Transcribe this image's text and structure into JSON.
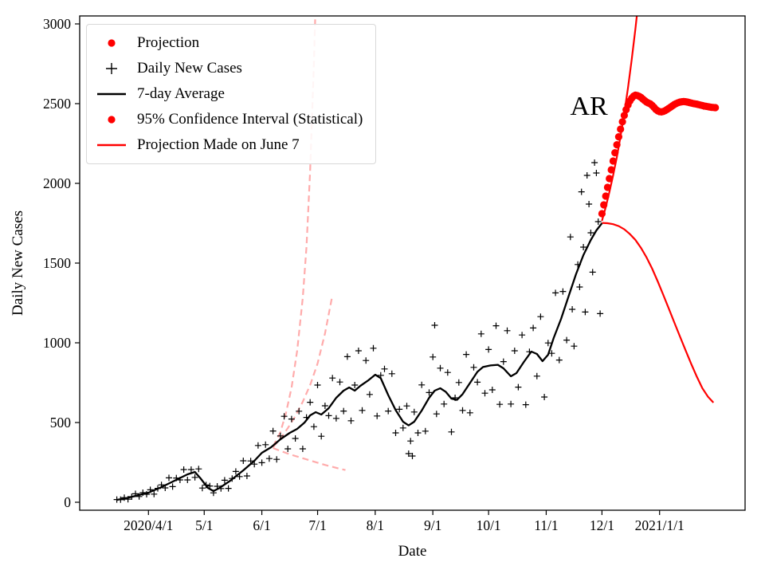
{
  "chart_data": {
    "type": "scatter",
    "title": "",
    "xlabel": "Date",
    "ylabel": "Daily New Cases",
    "x_unit": "days since 2020/3/15",
    "xlim": [
      -20,
      338
    ],
    "ylim": [
      -50,
      3050
    ],
    "grid": false,
    "legend_position": "upper-left",
    "x_ticks": [
      {
        "day": 17,
        "label": "2020/4/1"
      },
      {
        "day": 47,
        "label": "5/1"
      },
      {
        "day": 78,
        "label": "6/1"
      },
      {
        "day": 108,
        "label": "7/1"
      },
      {
        "day": 139,
        "label": "8/1"
      },
      {
        "day": 170,
        "label": "9/1"
      },
      {
        "day": 200,
        "label": "10/1"
      },
      {
        "day": 231,
        "label": "11/1"
      },
      {
        "day": 261,
        "label": "12/1"
      },
      {
        "day": 292,
        "label": "2021/1/1"
      }
    ],
    "y_ticks": [
      {
        "value": 0,
        "label": "0"
      },
      {
        "value": 500,
        "label": "500"
      },
      {
        "value": 1000,
        "label": "1000"
      },
      {
        "value": 1500,
        "label": "1500"
      },
      {
        "value": 2000,
        "label": "2000"
      },
      {
        "value": 2500,
        "label": "2500"
      },
      {
        "value": 3000,
        "label": "3000"
      }
    ],
    "legend": [
      {
        "label": "Projection",
        "marker": "red-dot"
      },
      {
        "label": "Daily New Cases",
        "marker": "black-plus"
      },
      {
        "label": "7-day Average",
        "marker": "black-line"
      },
      {
        "label": "95% Confidence Interval (Statistical)",
        "marker": "red-dot"
      },
      {
        "label": "Projection Made on June 7",
        "marker": "red-line"
      }
    ],
    "annotation": {
      "text": "AR",
      "day": 254,
      "value": 2430
    },
    "colors": {
      "red": "#ff0000",
      "pink": "#ffabab",
      "black": "#000000",
      "legend_border": "#d8d8d8"
    },
    "series": {
      "daily_new_cases": {
        "name": "Daily New Cases",
        "style": "plus-marker",
        "points": [
          [
            0,
            17
          ],
          [
            2,
            16
          ],
          [
            4,
            29
          ],
          [
            6,
            19
          ],
          [
            8,
            35
          ],
          [
            10,
            53
          ],
          [
            12,
            36
          ],
          [
            14,
            60
          ],
          [
            16,
            50
          ],
          [
            18,
            78
          ],
          [
            20,
            51
          ],
          [
            22,
            87
          ],
          [
            24,
            109
          ],
          [
            26,
            90
          ],
          [
            28,
            153
          ],
          [
            30,
            98
          ],
          [
            32,
            152
          ],
          [
            34,
            140
          ],
          [
            36,
            205
          ],
          [
            38,
            140
          ],
          [
            40,
            205
          ],
          [
            42,
            156
          ],
          [
            44,
            209
          ],
          [
            46,
            89
          ],
          [
            48,
            108
          ],
          [
            50,
            102
          ],
          [
            52,
            59
          ],
          [
            54,
            100
          ],
          [
            56,
            86
          ],
          [
            58,
            138
          ],
          [
            60,
            87
          ],
          [
            62,
            149
          ],
          [
            64,
            193
          ],
          [
            66,
            161
          ],
          [
            68,
            260
          ],
          [
            70,
            165
          ],
          [
            72,
            259
          ],
          [
            74,
            239
          ],
          [
            76,
            356
          ],
          [
            78,
            248
          ],
          [
            80,
            361
          ],
          [
            82,
            274
          ],
          [
            84,
            447
          ],
          [
            86,
            269
          ],
          [
            88,
            416
          ],
          [
            90,
            539
          ],
          [
            92,
            335
          ],
          [
            94,
            522
          ],
          [
            96,
            400
          ],
          [
            98,
            571
          ],
          [
            100,
            335
          ],
          [
            102,
            532
          ],
          [
            104,
            627
          ],
          [
            106,
            474
          ],
          [
            108,
            735
          ],
          [
            110,
            414
          ],
          [
            112,
            605
          ],
          [
            114,
            543
          ],
          [
            116,
            779
          ],
          [
            118,
            526
          ],
          [
            120,
            754
          ],
          [
            122,
            572
          ],
          [
            124,
            913
          ],
          [
            126,
            511
          ],
          [
            128,
            735
          ],
          [
            130,
            950
          ],
          [
            132,
            576
          ],
          [
            134,
            889
          ],
          [
            136,
            676
          ],
          [
            138,
            966
          ],
          [
            140,
            541
          ],
          [
            142,
            796
          ],
          [
            144,
            836
          ],
          [
            146,
            572
          ],
          [
            148,
            806
          ],
          [
            150,
            435
          ],
          [
            152,
            583
          ],
          [
            154,
            466
          ],
          [
            156,
            604
          ],
          [
            158,
            384
          ],
          [
            160,
            566
          ],
          [
            162,
            435
          ],
          [
            164,
            736
          ],
          [
            166,
            446
          ],
          [
            168,
            688
          ],
          [
            170,
            911
          ],
          [
            172,
            554
          ],
          [
            174,
            841
          ],
          [
            176,
            616
          ],
          [
            178,
            814
          ],
          [
            180,
            441
          ],
          [
            182,
            655
          ],
          [
            184,
            751
          ],
          [
            186,
            576
          ],
          [
            188,
            927
          ],
          [
            190,
            561
          ],
          [
            192,
            846
          ],
          [
            194,
            753
          ],
          [
            196,
            1056
          ],
          [
            198,
            684
          ],
          [
            200,
            958
          ],
          [
            202,
            705
          ],
          [
            204,
            1107
          ],
          [
            206,
            614
          ],
          [
            208,
            882
          ],
          [
            210,
            1076
          ],
          [
            212,
            616
          ],
          [
            214,
            950
          ],
          [
            216,
            722
          ],
          [
            218,
            1049
          ],
          [
            220,
            612
          ],
          [
            222,
            944
          ],
          [
            224,
            1093
          ],
          [
            226,
            791
          ],
          [
            228,
            1164
          ],
          [
            230,
            660
          ],
          [
            232,
            999
          ],
          [
            234,
            934
          ],
          [
            236,
            1313
          ],
          [
            238,
            892
          ],
          [
            240,
            1322
          ],
          [
            242,
            1017
          ],
          [
            244,
            1664
          ],
          [
            246,
            979
          ],
          [
            248,
            1491
          ],
          [
            250,
            1947
          ],
          [
            252,
            1193
          ],
          [
            254,
            1870
          ],
          [
            256,
            1443
          ],
          [
            258,
            2065
          ],
          [
            260,
            1183
          ],
          [
            157,
            305
          ],
          [
            159,
            290
          ],
          [
            171,
            1110
          ],
          [
            245,
            1210
          ],
          [
            249,
            1350
          ],
          [
            251,
            1600
          ],
          [
            253,
            2050
          ],
          [
            255,
            1690
          ],
          [
            257,
            2130
          ],
          [
            259,
            1760
          ]
        ]
      },
      "seven_day_average": {
        "name": "7-day Average",
        "style": "solid-line",
        "points": [
          [
            0,
            15
          ],
          [
            5,
            25
          ],
          [
            10,
            40
          ],
          [
            17,
            60
          ],
          [
            24,
            95
          ],
          [
            31,
            135
          ],
          [
            38,
            175
          ],
          [
            42,
            190
          ],
          [
            45,
            150
          ],
          [
            49,
            90
          ],
          [
            52,
            70
          ],
          [
            55,
            88
          ],
          [
            61,
            135
          ],
          [
            68,
            200
          ],
          [
            74,
            260
          ],
          [
            78,
            310
          ],
          [
            83,
            345
          ],
          [
            88,
            395
          ],
          [
            93,
            435
          ],
          [
            97,
            460
          ],
          [
            101,
            500
          ],
          [
            104,
            545
          ],
          [
            107,
            565
          ],
          [
            110,
            550
          ],
          [
            114,
            590
          ],
          [
            118,
            655
          ],
          [
            122,
            700
          ],
          [
            125,
            720
          ],
          [
            128,
            700
          ],
          [
            131,
            730
          ],
          [
            135,
            762
          ],
          [
            139,
            800
          ],
          [
            142,
            778
          ],
          [
            146,
            672
          ],
          [
            150,
            578
          ],
          [
            154,
            505
          ],
          [
            157,
            482
          ],
          [
            160,
            505
          ],
          [
            164,
            575
          ],
          [
            168,
            655
          ],
          [
            171,
            700
          ],
          [
            174,
            715
          ],
          [
            177,
            692
          ],
          [
            180,
            650
          ],
          [
            183,
            642
          ],
          [
            186,
            678
          ],
          [
            190,
            748
          ],
          [
            194,
            818
          ],
          [
            197,
            848
          ],
          [
            201,
            858
          ],
          [
            205,
            862
          ],
          [
            208,
            840
          ],
          [
            212,
            790
          ],
          [
            215,
            810
          ],
          [
            219,
            880
          ],
          [
            223,
            945
          ],
          [
            226,
            930
          ],
          [
            229,
            885
          ],
          [
            232,
            925
          ],
          [
            235,
            1030
          ],
          [
            239,
            1150
          ],
          [
            243,
            1290
          ],
          [
            247,
            1430
          ],
          [
            251,
            1550
          ],
          [
            255,
            1645
          ],
          [
            258,
            1705
          ],
          [
            261,
            1750
          ]
        ]
      },
      "projection": {
        "name": "Projection",
        "style": "red-dots",
        "start_day": 261,
        "values": [
          1810,
          1865,
          1920,
          1975,
          2030,
          2085,
          2140,
          2192,
          2242,
          2292,
          2340,
          2386,
          2426,
          2462,
          2492,
          2516,
          2534,
          2547,
          2553,
          2551,
          2546,
          2539,
          2529,
          2519,
          2510,
          2504,
          2499,
          2489,
          2477,
          2464,
          2455,
          2450,
          2448,
          2451,
          2456,
          2463,
          2471,
          2479,
          2487,
          2495,
          2501,
          2506,
          2510,
          2512,
          2513,
          2512,
          2510,
          2507,
          2504,
          2501,
          2499,
          2497,
          2494,
          2491,
          2488,
          2485,
          2483,
          2481,
          2479,
          2477,
          2476,
          2475
        ]
      },
      "ci_upper": {
        "name": "95% CI upper",
        "style": "solid-line-red",
        "points": [
          [
            261,
            1765
          ],
          [
            263,
            1850
          ],
          [
            265,
            1945
          ],
          [
            267,
            2050
          ],
          [
            269,
            2165
          ],
          [
            271,
            2295
          ],
          [
            273,
            2440
          ],
          [
            275,
            2600
          ],
          [
            277,
            2775
          ],
          [
            279,
            2970
          ],
          [
            280,
            3075
          ],
          [
            281,
            3200
          ]
        ]
      },
      "ci_lower": {
        "name": "95% CI lower",
        "style": "solid-line-red",
        "points": [
          [
            261,
            1752
          ],
          [
            264,
            1750
          ],
          [
            267,
            1744
          ],
          [
            270,
            1732
          ],
          [
            273,
            1712
          ],
          [
            276,
            1682
          ],
          [
            279,
            1645
          ],
          [
            282,
            1595
          ],
          [
            285,
            1535
          ],
          [
            288,
            1465
          ],
          [
            291,
            1385
          ],
          [
            294,
            1300
          ],
          [
            297,
            1213
          ],
          [
            300,
            1125
          ],
          [
            303,
            1038
          ],
          [
            306,
            952
          ],
          [
            309,
            868
          ],
          [
            312,
            788
          ],
          [
            315,
            715
          ],
          [
            318,
            662
          ],
          [
            321,
            625
          ]
        ]
      },
      "june7_upper": {
        "name": "Projection Made on June 7 (upper)",
        "style": "dashed-pink",
        "points": [
          [
            84,
            350
          ],
          [
            88,
            440
          ],
          [
            91,
            560
          ],
          [
            94,
            720
          ],
          [
            97,
            950
          ],
          [
            100,
            1280
          ],
          [
            102,
            1600
          ],
          [
            104,
            2080
          ],
          [
            106,
            2750
          ],
          [
            107,
            3150
          ]
        ]
      },
      "june7_center": {
        "name": "Projection Made on June 7 (center)",
        "style": "dashed-pink",
        "points": [
          [
            84,
            345
          ],
          [
            88,
            400
          ],
          [
            92,
            465
          ],
          [
            96,
            540
          ],
          [
            100,
            630
          ],
          [
            104,
            735
          ],
          [
            108,
            870
          ],
          [
            112,
            1060
          ],
          [
            116,
            1300
          ]
        ]
      },
      "june7_lower": {
        "name": "Projection Made on June 7 (lower)",
        "style": "dashed-pink",
        "points": [
          [
            84,
            340
          ],
          [
            88,
            322
          ],
          [
            92,
            305
          ],
          [
            96,
            290
          ],
          [
            100,
            276
          ],
          [
            104,
            262
          ],
          [
            108,
            248
          ],
          [
            112,
            234
          ],
          [
            116,
            222
          ],
          [
            120,
            210
          ],
          [
            123,
            202
          ]
        ]
      }
    }
  }
}
